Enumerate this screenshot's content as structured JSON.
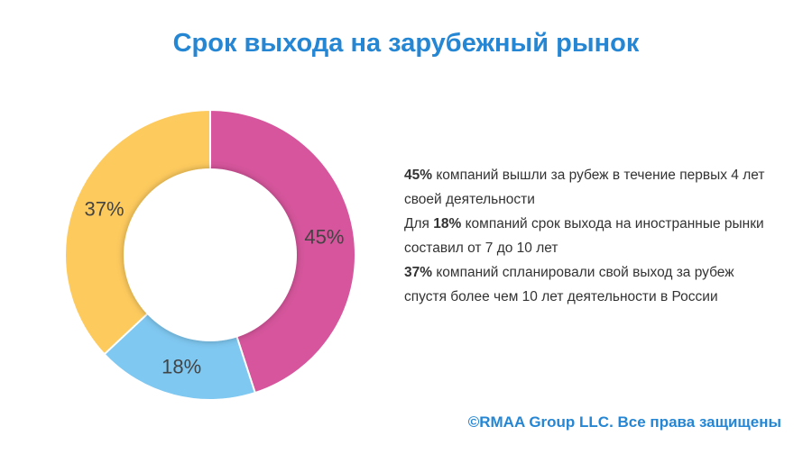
{
  "title": "Срок выхода на зарубежный рынок",
  "chart_data": {
    "type": "pie",
    "variant": "donut",
    "slices": [
      {
        "label": "45%",
        "value": 45,
        "color": "#d6559c"
      },
      {
        "label": "18%",
        "value": 18,
        "color": "#7fc8f1"
      },
      {
        "label": "37%",
        "value": 37,
        "color": "#fdca5d"
      }
    ]
  },
  "description": [
    {
      "bold": "45%",
      "text": " компаний вышли за рубеж в течение первых 4 лет своей деятельности"
    },
    {
      "prefix": "Для ",
      "bold": "18%",
      "text": " компаний срок выхода на иностранные рынки составил от 7 до 10 лет"
    },
    {
      "bold": "37%",
      "text": " компаний спланировали свой выход за рубеж спустя более чем 10 лет деятельности в России"
    }
  ],
  "footer": "©RMAA Group LLC. Все права защищены"
}
